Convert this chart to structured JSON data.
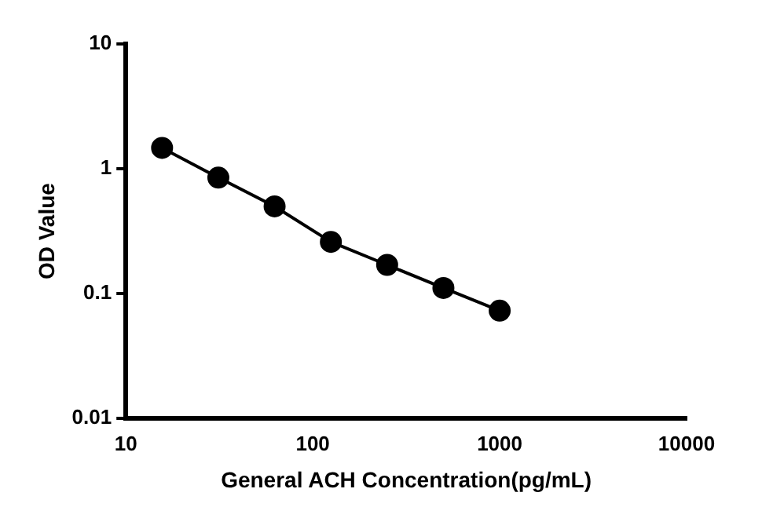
{
  "chart_data": {
    "type": "line",
    "xlabel": "General ACH Concentration(pg/mL)",
    "ylabel": "OD Value",
    "x": [
      15.625,
      31.25,
      62.5,
      125,
      250,
      500,
      1000
    ],
    "series": [
      {
        "color": "#000000",
        "values": [
          1.47,
          0.85,
          0.5,
          0.26,
          0.17,
          0.111,
          0.073
        ]
      }
    ],
    "log": "xy",
    "xlim": [
      10,
      10000
    ],
    "xticks": [
      10,
      100,
      1000,
      10000
    ],
    "ylim": [
      0.01,
      10
    ],
    "yticks": [
      0.01,
      0.1,
      1,
      10
    ],
    "marker": "circle",
    "line_style": "solid",
    "grid": false,
    "legend": false
  }
}
